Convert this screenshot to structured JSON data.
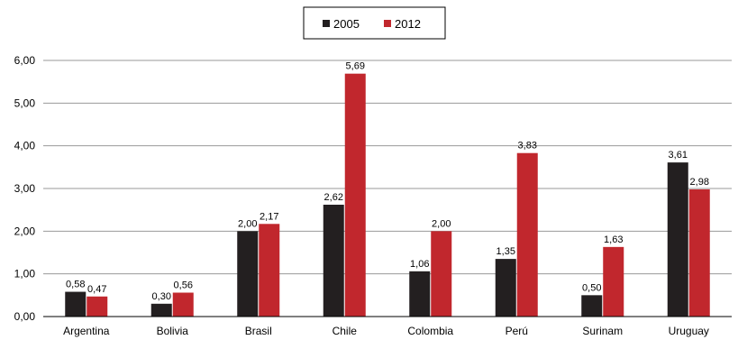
{
  "chart_data": {
    "type": "bar",
    "categories": [
      "Argentina",
      "Bolivia",
      "Brasil",
      "Chile",
      "Colombia",
      "Perú",
      "Surinam",
      "Uruguay"
    ],
    "series": [
      {
        "name": "2005",
        "color": "#231f20",
        "values": [
          0.58,
          0.3,
          2.0,
          2.62,
          1.06,
          1.35,
          0.5,
          3.61
        ],
        "labels": [
          "0,58",
          "0,30",
          "2,00",
          "2,62",
          "1,06",
          "1,35",
          "0,50",
          "3,61"
        ]
      },
      {
        "name": "2012",
        "color": "#c1272d",
        "values": [
          0.47,
          0.56,
          2.17,
          5.69,
          2.0,
          3.83,
          1.63,
          2.98
        ],
        "labels": [
          "0,47",
          "0,56",
          "2,17",
          "5,69",
          "2,00",
          "3,83",
          "1,63",
          "2,98"
        ]
      }
    ],
    "yticks": [
      0,
      1,
      2,
      3,
      4,
      5,
      6
    ],
    "ytick_labels": [
      "0,00",
      "1,00",
      "2,00",
      "3,00",
      "4,00",
      "5,00",
      "6,00"
    ],
    "ylim": [
      0,
      6
    ],
    "title": "",
    "xlabel": "",
    "ylabel": "",
    "grid": "horizontal",
    "legend_position": "top-center"
  }
}
